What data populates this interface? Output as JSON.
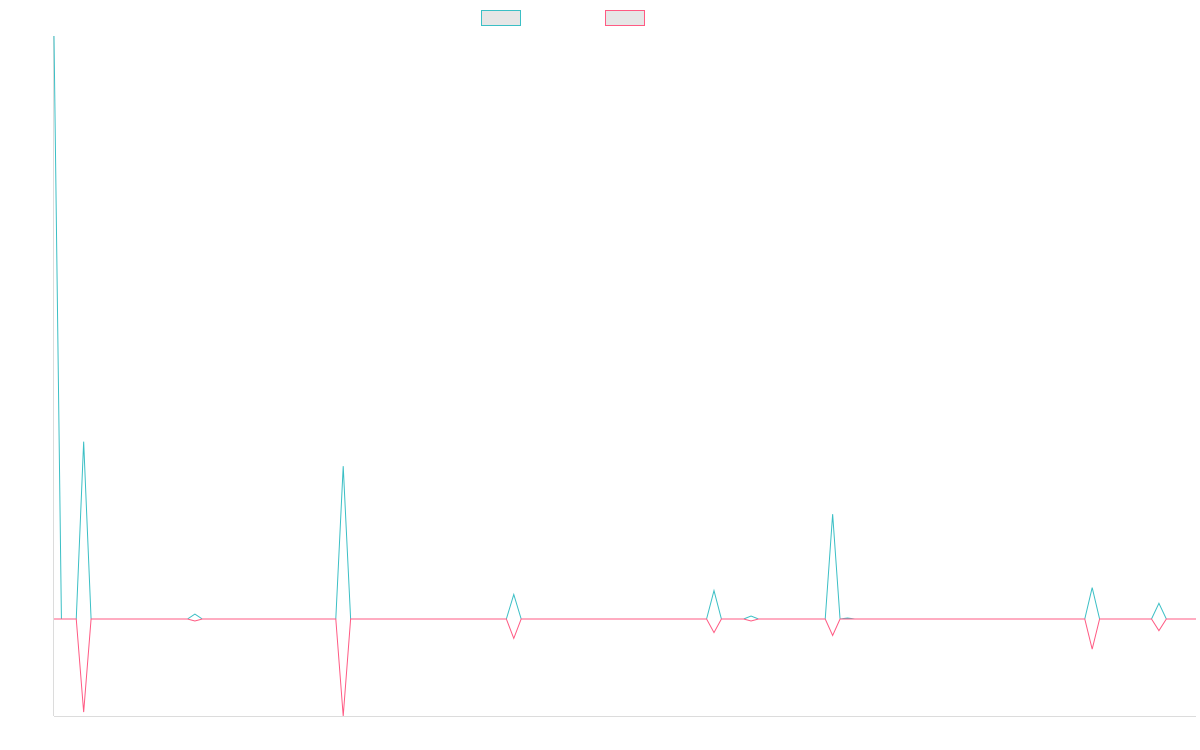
{
  "chart_data": {
    "type": "line",
    "title": "",
    "xlabel": "",
    "ylabel": "",
    "x_count": 155,
    "ylim": [
      -100,
      595
    ],
    "grid": false,
    "legend": {
      "placement": "top-center",
      "entries": [
        "",
        ""
      ]
    },
    "colors": {
      "series_a": "#3bbfc5",
      "series_b": "#ff5a83",
      "swatch_fill": "#e6e6e6",
      "axis": "#dcdcdc"
    },
    "series": [
      {
        "color": "#3bbfc5",
        "points": [
          {
            "x": 0,
            "y": 595
          },
          {
            "x": 1,
            "y": 0
          },
          {
            "x": 4,
            "y": 181
          },
          {
            "x": 19,
            "y": 5
          },
          {
            "x": 39,
            "y": 156
          },
          {
            "x": 62,
            "y": 25
          },
          {
            "x": 89,
            "y": 29
          },
          {
            "x": 94,
            "y": 3
          },
          {
            "x": 105,
            "y": 107
          },
          {
            "x": 107,
            "y": 1
          },
          {
            "x": 140,
            "y": 32
          },
          {
            "x": 149,
            "y": 16
          }
        ]
      },
      {
        "color": "#ff5a83",
        "points": [
          {
            "x": 4,
            "y": -96
          },
          {
            "x": 19,
            "y": -2
          },
          {
            "x": 39,
            "y": -100
          },
          {
            "x": 62,
            "y": -20
          },
          {
            "x": 89,
            "y": -14
          },
          {
            "x": 94,
            "y": -2
          },
          {
            "x": 105,
            "y": -17
          },
          {
            "x": 140,
            "y": -31
          },
          {
            "x": 149,
            "y": -12
          }
        ]
      }
    ]
  }
}
